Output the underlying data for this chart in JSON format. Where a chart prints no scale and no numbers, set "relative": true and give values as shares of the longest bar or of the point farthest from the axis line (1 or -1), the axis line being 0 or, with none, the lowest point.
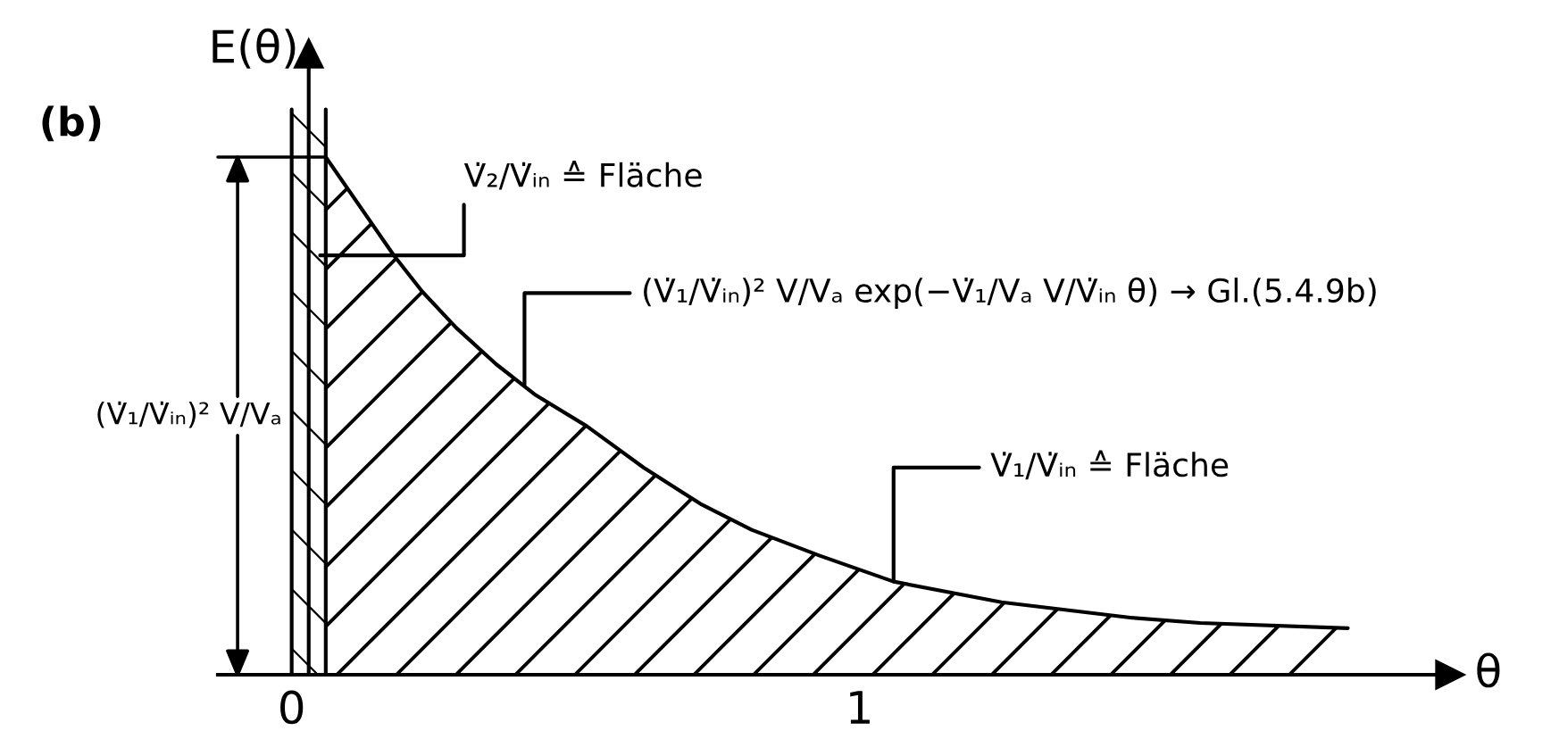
{
  "chart_data": {
    "type": "area",
    "title": "(b)",
    "xlabel": "θ",
    "ylabel": "E(θ)",
    "relative": true,
    "x": [
      0.06,
      0.18,
      0.23,
      0.29,
      0.36,
      0.43,
      0.52,
      0.62,
      0.72,
      0.81,
      0.93,
      1.06,
      1.25,
      1.48,
      1.6,
      1.86
    ],
    "values": [
      1,
      0.81,
      0.74,
      0.67,
      0.6,
      0.54,
      0.48,
      0.4,
      0.33,
      0.28,
      0.23,
      0.18,
      0.14,
      0.11,
      0.1,
      0.09
    ],
    "color": "#000000",
    "xlim": [
      -0.13,
      2.04
    ],
    "xticks": [
      0,
      1
    ],
    "bands": [
      {
        "axis": "x",
        "from": 0,
        "to": 0.06,
        "color": "#000000"
      }
    ],
    "annotations": [
      "(V̇₁/V̇ᵢₙ)² V/Vₐ",
      {
        "text": "V̇₂/V̇ᵢₙ ≙ Fläche",
        "x": 0.05,
        "y": 0.81
      },
      {
        "text": "(V̇₁/V̇ᵢₙ)² V/Vₐ exp(−V̇₁/Vₐ V/V̇ᵢₙ θ) → Gl.(5.4.9b)",
        "x": 0.41,
        "y": 0.56
      },
      {
        "text": "V̇₁/V̇ᵢₙ ≙ Fläche",
        "x": 1.06,
        "y": 0.18
      }
    ]
  }
}
